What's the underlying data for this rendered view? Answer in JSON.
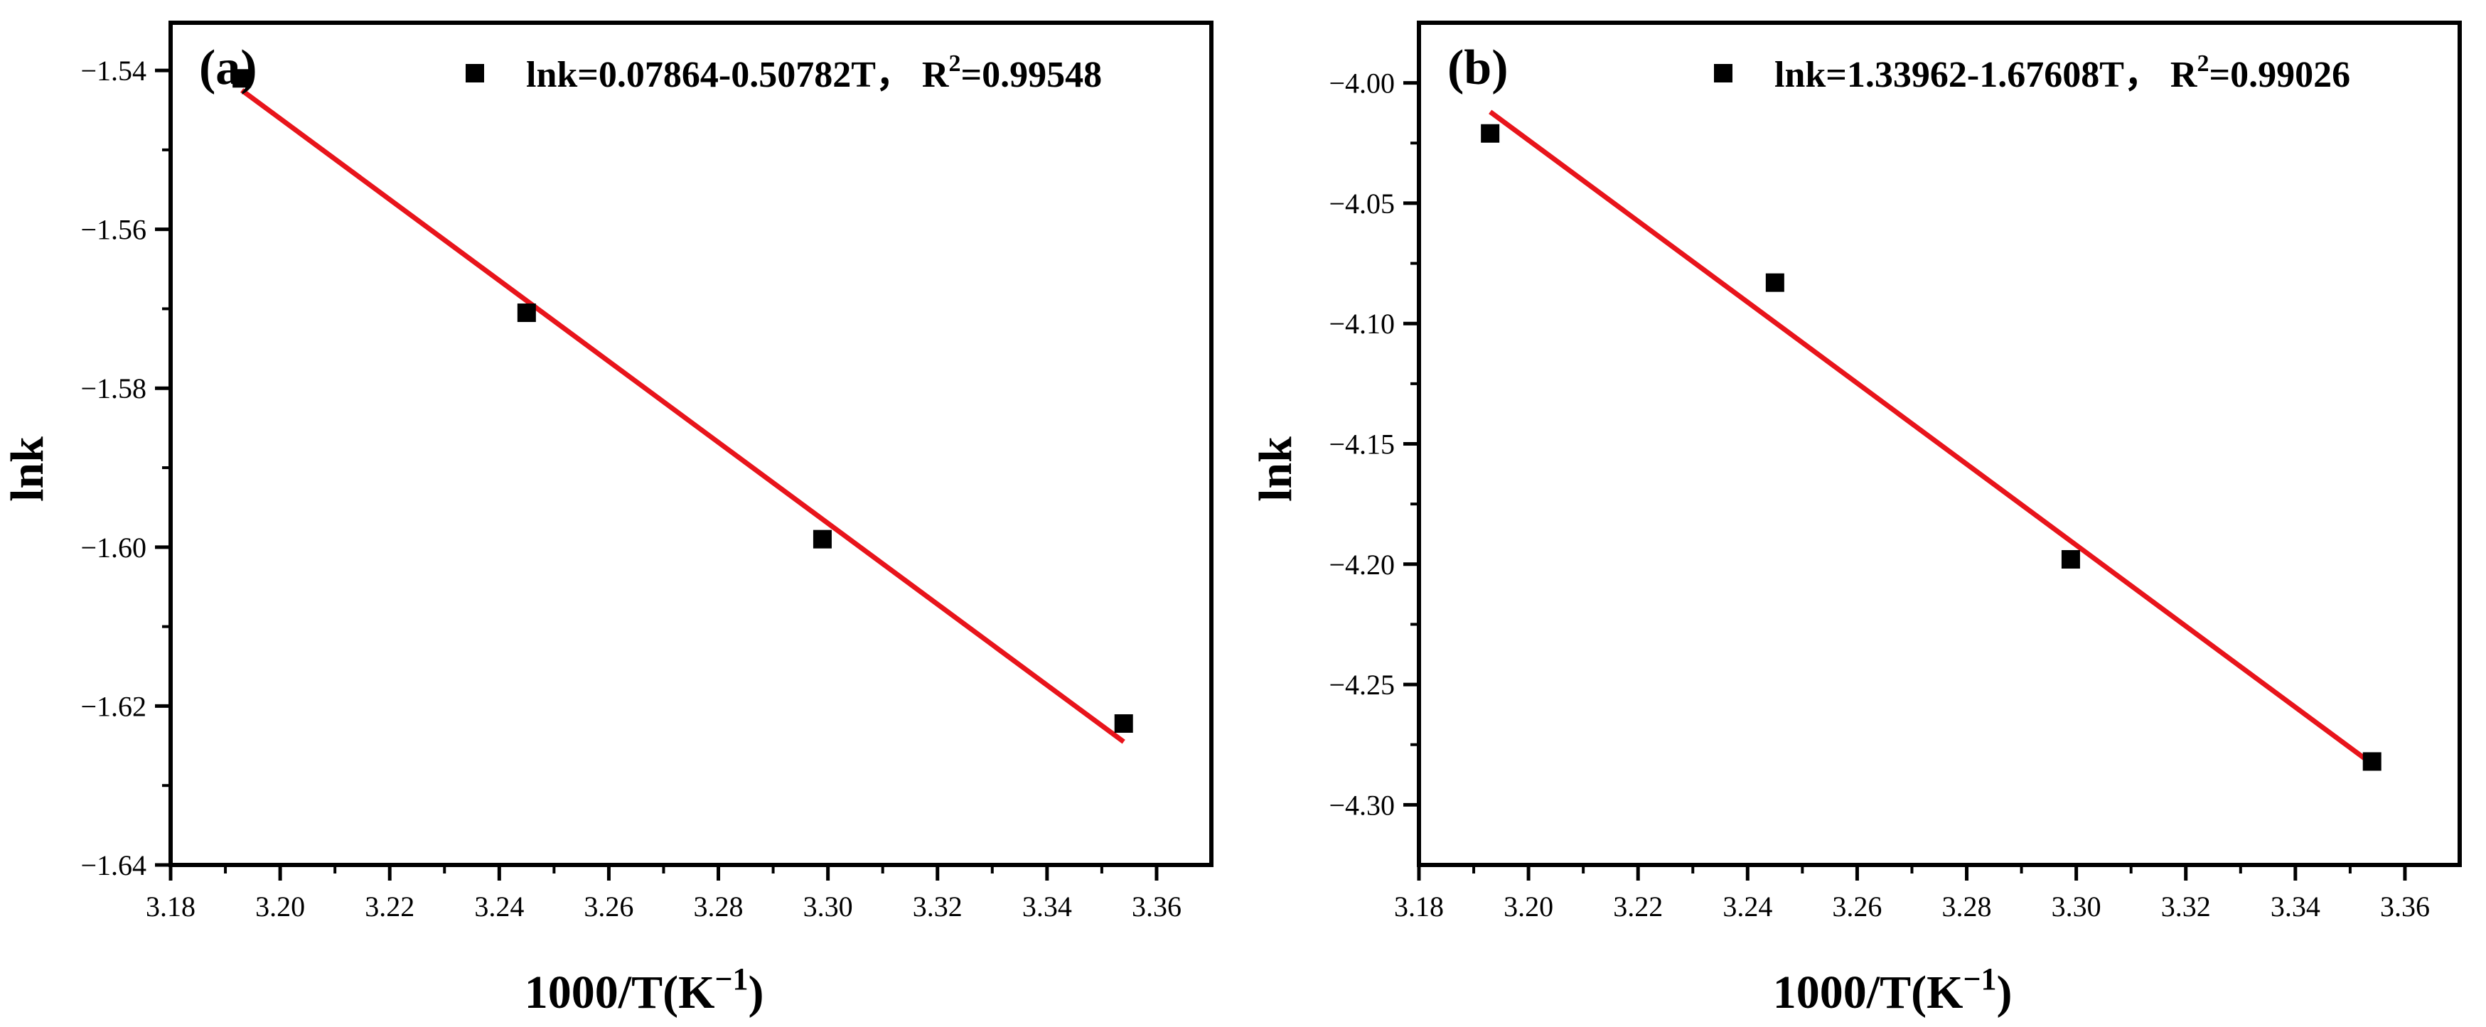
{
  "figure": {
    "background": "#ffffff"
  },
  "chart_data": [
    {
      "type": "scatter",
      "panel_label": "(a)",
      "xlabel": "1000/T(K",
      "xlabel_superscript": "−1",
      "xlabel_suffix": ")",
      "ylabel": "lnk",
      "xlim": [
        3.18,
        3.37
      ],
      "ylim": [
        -1.64,
        -1.534
      ],
      "xticks": [
        3.18,
        3.2,
        3.22,
        3.24,
        3.26,
        3.28,
        3.3,
        3.32,
        3.34,
        3.36
      ],
      "xtick_labels": [
        "3.18",
        "3.20",
        "3.22",
        "3.24",
        "3.26",
        "3.28",
        "3.30",
        "3.32",
        "3.34",
        "3.36"
      ],
      "yticks": [
        -1.64,
        -1.62,
        -1.6,
        -1.58,
        -1.56,
        -1.54
      ],
      "ytick_labels": [
        "−1.64",
        "−1.62",
        "−1.60",
        "−1.58",
        "−1.56",
        "−1.54"
      ],
      "points": {
        "x": [
          3.193,
          3.245,
          3.299,
          3.354
        ],
        "y": [
          -1.541,
          -1.5705,
          -1.599,
          -1.6222
        ]
      },
      "fit": {
        "x": [
          3.193,
          3.354
        ],
        "y": [
          -1.5425,
          -1.6245
        ]
      },
      "legend": {
        "text": "lnk=0.07864-0.50782T， R",
        "sup": "2",
        "suffix": "=0.99548",
        "position": "top-right"
      },
      "point_color": "#000000",
      "line_color": "#e8141b"
    },
    {
      "type": "scatter",
      "panel_label": "(b)",
      "xlabel": "1000/T(K",
      "xlabel_superscript": "−1",
      "xlabel_suffix": ")",
      "ylabel": "lnk",
      "xlim": [
        3.18,
        3.37
      ],
      "ylim": [
        -4.325,
        -3.975
      ],
      "xticks": [
        3.18,
        3.2,
        3.22,
        3.24,
        3.26,
        3.28,
        3.3,
        3.32,
        3.34,
        3.36
      ],
      "xtick_labels": [
        "3.18",
        "3.20",
        "3.22",
        "3.24",
        "3.26",
        "3.28",
        "3.30",
        "3.32",
        "3.34",
        "3.36"
      ],
      "yticks": [
        -4.3,
        -4.25,
        -4.2,
        -4.15,
        -4.1,
        -4.05,
        -4.0
      ],
      "ytick_labels": [
        "−4.30",
        "−4.25",
        "−4.20",
        "−4.15",
        "−4.10",
        "−4.05",
        "−4.00"
      ],
      "points": {
        "x": [
          3.193,
          3.245,
          3.299,
          3.354
        ],
        "y": [
          -4.021,
          -4.083,
          -4.198,
          -4.282
        ]
      },
      "fit": {
        "x": [
          3.193,
          3.354
        ],
        "y": [
          -4.012,
          -4.283
        ]
      },
      "legend": {
        "text": "lnk=1.33962-1.67608T， R",
        "sup": "2",
        "suffix": "=0.99026",
        "position": "top-right"
      },
      "point_color": "#000000",
      "line_color": "#e8141b"
    }
  ]
}
